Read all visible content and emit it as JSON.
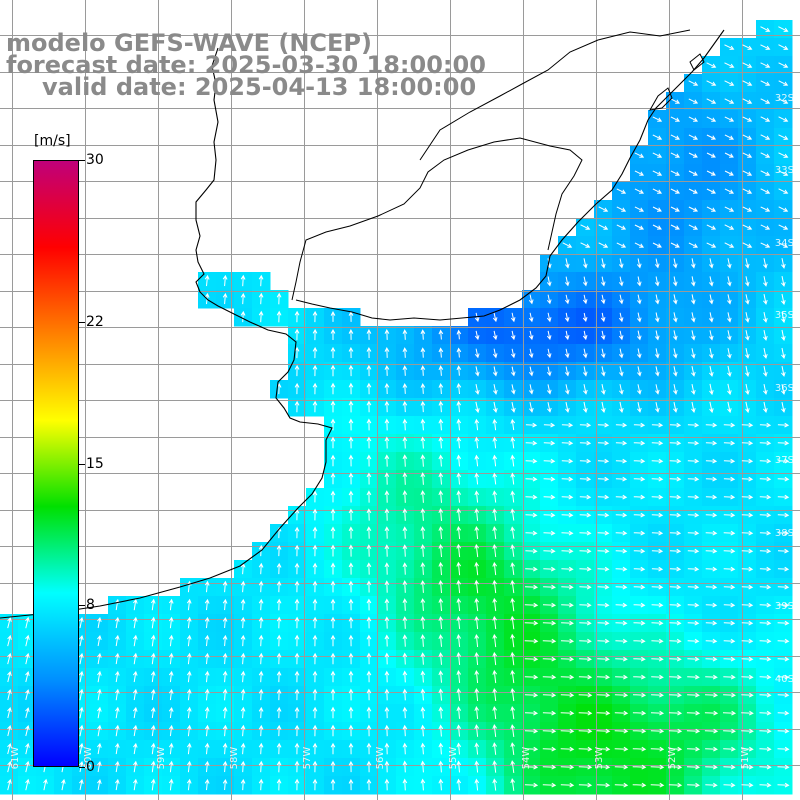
{
  "header": {
    "model_line": "modelo GEFS-WAVE (NCEP)",
    "forecast_line": "forecast date: 2025-03-30 18:00:00",
    "valid_line": "valid date: 2025-04-13 18:00:00"
  },
  "colorbar": {
    "unit": "[m/s]",
    "min": 0,
    "max": 30,
    "labels": [
      "30",
      "22",
      "15",
      "8",
      "0"
    ],
    "label_values": [
      30,
      22,
      15,
      8,
      0
    ],
    "colors": [
      "#0000ff",
      "#0090ff",
      "#00ffff",
      "#00e000",
      "#ffff00",
      "#ff8000",
      "#ff0000",
      "#c0007a"
    ]
  },
  "map": {
    "latitude_labels": [
      "32S",
      "33S",
      "34S",
      "35S",
      "36S",
      "37S",
      "38S",
      "39S",
      "40S"
    ],
    "longitude_labels": [
      "61W",
      "60W",
      "59W",
      "58W",
      "57W",
      "56W",
      "55W",
      "54W",
      "53W",
      "52W",
      "51W"
    ],
    "field_name": "wind speed",
    "field_unit": "m/s"
  }
}
